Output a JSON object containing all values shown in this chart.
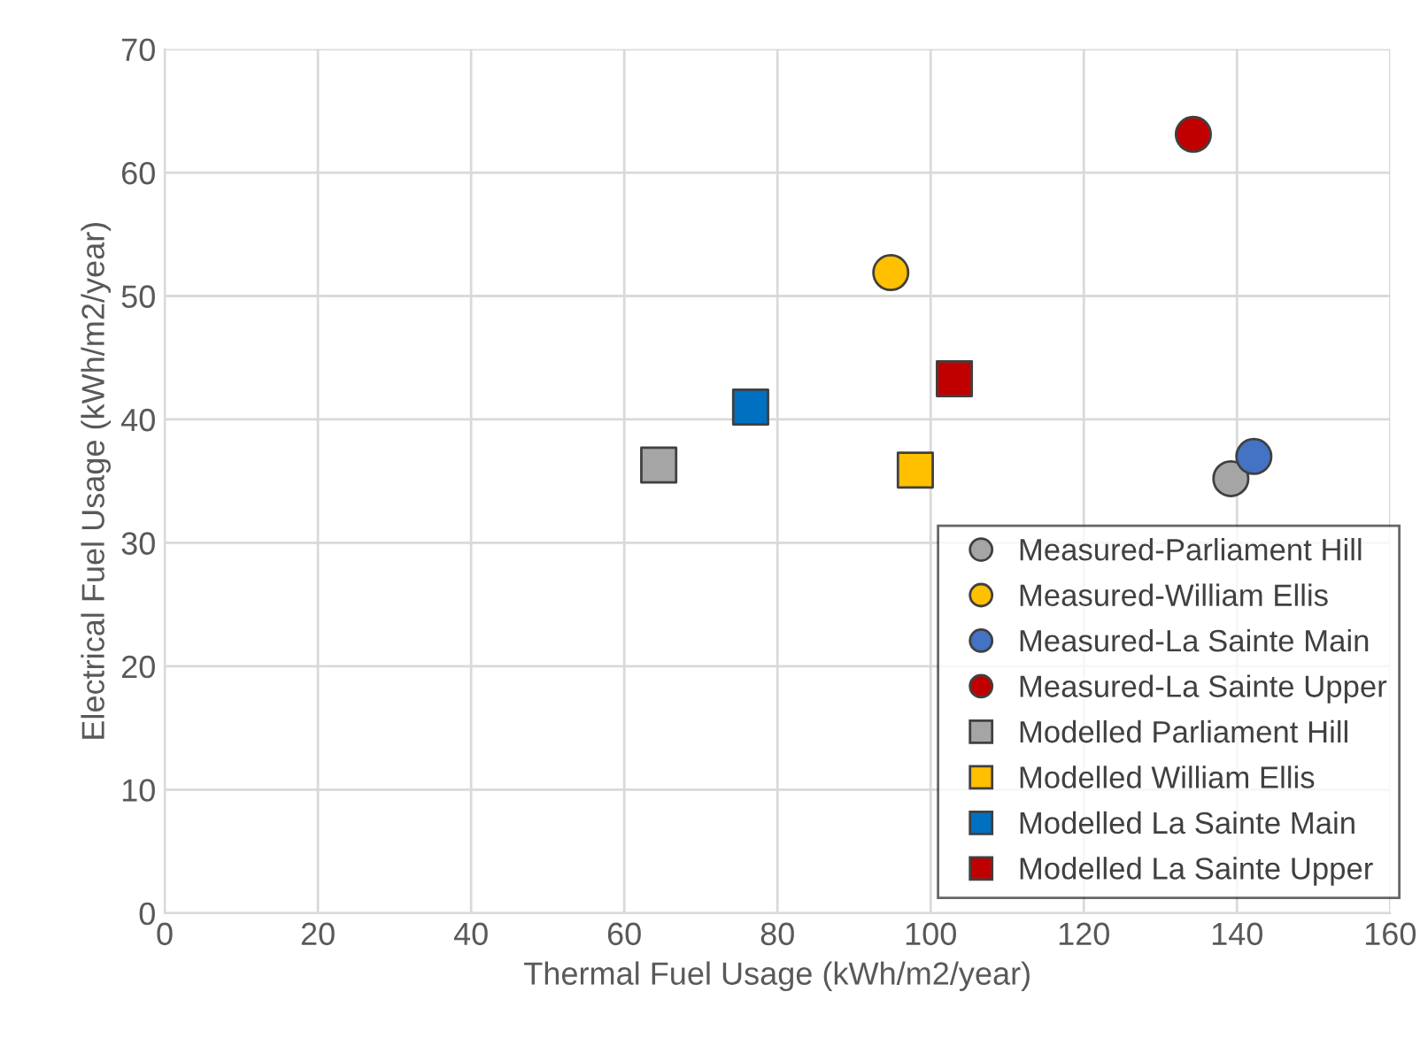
{
  "chart_data": {
    "type": "scatter",
    "xlabel": "Thermal Fuel Usage (kWh/m2/year)",
    "ylabel": "Electrical Fuel Usage (kWh/m2/year)",
    "xlim": [
      0,
      160
    ],
    "xticks": [
      0,
      20,
      40,
      60,
      80,
      100,
      120,
      140,
      160
    ],
    "ylim": [
      0,
      70
    ],
    "yticks": [
      0,
      10,
      20,
      30,
      40,
      50,
      60,
      70
    ],
    "grid": true,
    "legend": "bottom right",
    "series": [
      {
        "name": "Measured-Parliament Hill",
        "color": "#a5a5a5",
        "marker": "circle",
        "x": [
          139.2
        ],
        "values": [
          35.2
        ]
      },
      {
        "name": "Measured-William Ellis",
        "color": "#ffc000",
        "marker": "circle",
        "x": [
          94.8
        ],
        "values": [
          51.9
        ]
      },
      {
        "name": "Measured-La Sainte Main",
        "color": "#4472c4",
        "marker": "circle",
        "x": [
          142.2
        ],
        "values": [
          37.0
        ]
      },
      {
        "name": "Measured-La Sainte Upper",
        "color": "#c00000",
        "marker": "circle",
        "x": [
          134.3
        ],
        "values": [
          63.1
        ]
      },
      {
        "name": "Modelled Parliament Hill",
        "color": "#a5a5a5",
        "marker": "square",
        "x": [
          64.5
        ],
        "values": [
          36.3
        ]
      },
      {
        "name": "Modelled William Ellis",
        "color": "#ffc000",
        "marker": "square",
        "x": [
          98.0
        ],
        "values": [
          35.9
        ]
      },
      {
        "name": "Modelled La Sainte Main",
        "color": "#0070c0",
        "marker": "square",
        "x": [
          76.5
        ],
        "values": [
          41.0
        ]
      },
      {
        "name": "Modelled La Sainte Upper",
        "color": "#c00000",
        "marker": "square",
        "x": [
          103.1
        ],
        "values": [
          43.3
        ]
      }
    ]
  }
}
